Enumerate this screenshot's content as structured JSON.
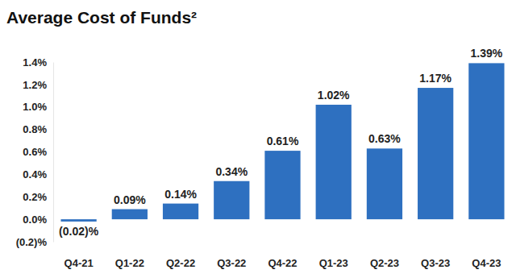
{
  "chart_data": {
    "type": "bar",
    "title": "Average Cost of Funds²",
    "categories": [
      "Q4-21",
      "Q1-22",
      "Q2-22",
      "Q3-22",
      "Q4-22",
      "Q1-23",
      "Q2-23",
      "Q3-23",
      "Q4-23"
    ],
    "values": [
      -0.02,
      0.09,
      0.14,
      0.34,
      0.61,
      1.02,
      0.63,
      1.17,
      1.39
    ],
    "value_labels": [
      "(0.02)%",
      "0.09%",
      "0.14%",
      "0.34%",
      "0.61%",
      "1.02%",
      "0.63%",
      "1.17%",
      "1.39%"
    ],
    "color": "#2e70c0",
    "ylim": [
      -0.2,
      1.4
    ],
    "yticks": [
      {
        "value": -0.2,
        "label": "(0.2)%"
      },
      {
        "value": 0.0,
        "label": "0.0%"
      },
      {
        "value": 0.2,
        "label": "0.2%"
      },
      {
        "value": 0.4,
        "label": "0.4%"
      },
      {
        "value": 0.6,
        "label": "0.6%"
      },
      {
        "value": 0.8,
        "label": "0.8%"
      },
      {
        "value": 1.0,
        "label": "1.0%"
      },
      {
        "value": 1.2,
        "label": "1.2%"
      },
      {
        "value": 1.4,
        "label": "1.4%"
      }
    ],
    "grid": false,
    "data_labels": true
  }
}
